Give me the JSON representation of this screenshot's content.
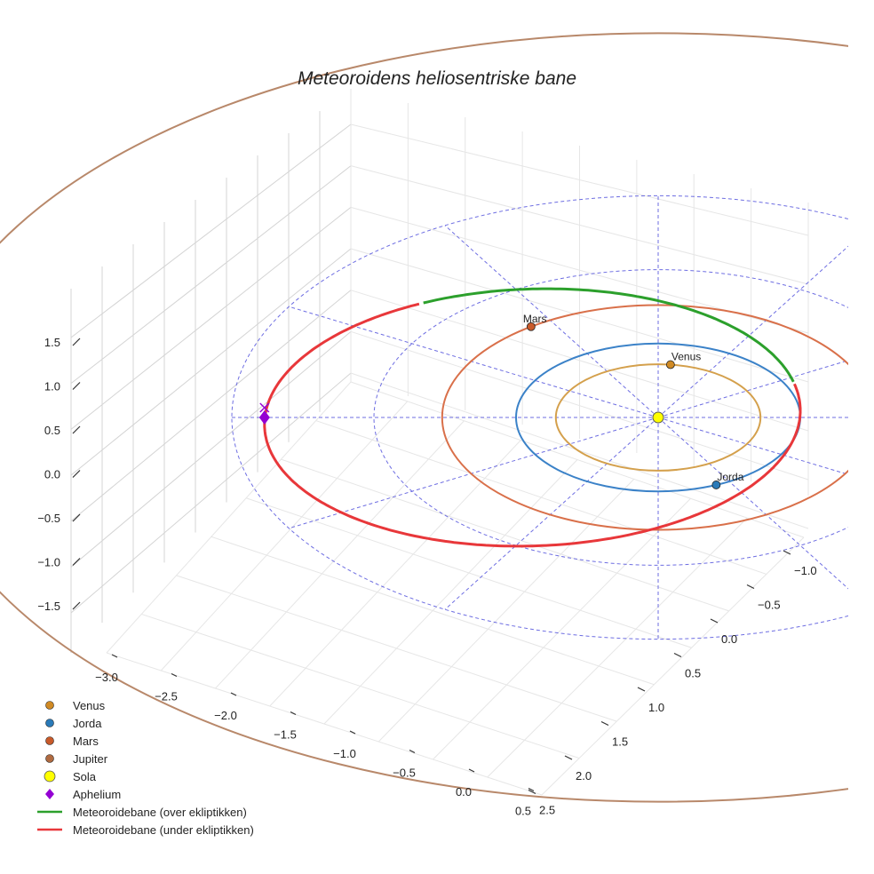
{
  "chart_data": {
    "type": "3d-line",
    "title": "Meteoroidens heliosentriske bane",
    "axes": {
      "x": {
        "ticks": [
          "−3.0",
          "−2.5",
          "−2.0",
          "−1.5",
          "−1.0",
          "−0.5",
          "0.0",
          "0.5"
        ]
      },
      "y": {
        "ticks": [
          "−1.0",
          "−0.5",
          "0.0",
          "0.5",
          "1.0",
          "1.5",
          "2.0",
          "2.5"
        ]
      },
      "z": {
        "ticks": [
          "1.5",
          "1.0",
          "0.5",
          "0.0",
          "−0.5",
          "−1.0",
          "−1.5"
        ]
      }
    },
    "planets": [
      {
        "name": "Venus",
        "label": "Venus",
        "orbit_radius_au": 0.72,
        "color": "#d4a04c",
        "marker": "#d08a24"
      },
      {
        "name": "Jorda",
        "label": "Jorda",
        "orbit_radius_au": 1.0,
        "color": "#3b82c8",
        "marker": "#2a7ab8"
      },
      {
        "name": "Mars",
        "label": "Mars",
        "orbit_radius_au": 1.52,
        "color": "#d9704a",
        "marker": "#c85a2a"
      },
      {
        "name": "Jupiter",
        "label": "",
        "orbit_radius_au": 5.2,
        "color": "#b8886a",
        "marker": "#b06a40"
      }
    ],
    "sun": {
      "name": "Sola",
      "color": "#ffff00"
    },
    "aphelium": {
      "name": "Aphelium",
      "color": "#9400d3",
      "distance_au": 2.77
    },
    "meteoroid_orbit": {
      "above": {
        "name": "Meteoroidebane (over ekliptikken)",
        "color": "#2ca02c"
      },
      "below": {
        "name": "Meteoroidebane (under ekliptikken)",
        "color": "#e8373a"
      }
    },
    "reference_grid": {
      "circles_au": [
        1,
        2,
        3
      ],
      "spokes": 12,
      "color": "#5555dd",
      "style": "dashed"
    }
  },
  "legend": [
    {
      "label": "Venus",
      "kind": "dot",
      "color": "#d08a24"
    },
    {
      "label": "Jorda",
      "kind": "dot",
      "color": "#2a7ab8"
    },
    {
      "label": "Mars",
      "kind": "dot",
      "color": "#c85a2a"
    },
    {
      "label": "Jupiter",
      "kind": "dot",
      "color": "#b06a40"
    },
    {
      "label": "Sola",
      "kind": "bigdot",
      "color": "#ffff00"
    },
    {
      "label": "Aphelium",
      "kind": "diamond",
      "color": "#9400d3"
    },
    {
      "label": "Meteoroidebane (over ekliptikken)",
      "kind": "line",
      "color": "#2ca02c"
    },
    {
      "label": "Meteoroidebane (under ekliptikken)",
      "kind": "line",
      "color": "#e8373a"
    }
  ]
}
